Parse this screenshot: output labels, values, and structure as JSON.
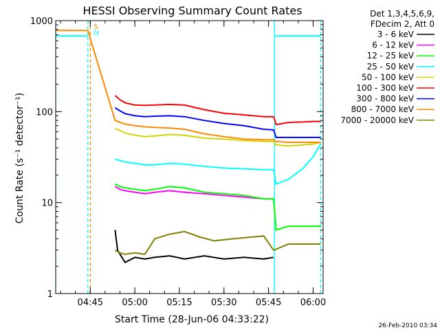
{
  "chart_data": {
    "type": "line",
    "title": "HESSI Observing Summary Count Rates",
    "xlabel": "Start Time (28-Jun-06 04:33:22)",
    "ylabel": "Count Rate (s⁻¹ detector⁻¹)",
    "xlim": [
      0,
      5400
    ],
    "x_units": "seconds since 04:33:22",
    "ylim": [
      1,
      1000
    ],
    "y_scale": "log",
    "x_ticks": [
      {
        "label": "04:45",
        "value": 698
      },
      {
        "label": "05:00",
        "value": 1598
      },
      {
        "label": "05:15",
        "value": 2498
      },
      {
        "label": "05:30",
        "value": 3398
      },
      {
        "label": "05:45",
        "value": 4298
      },
      {
        "label": "06:00",
        "value": 5198
      }
    ],
    "y_ticks": [
      {
        "label": "1",
        "value": 1
      },
      {
        "label": "10",
        "value": 10
      },
      {
        "label": "100",
        "value": 100
      },
      {
        "label": "1000",
        "value": 1000
      }
    ],
    "legend": {
      "title_line1": "Det 1,3,4,5,6,9,",
      "title_line2": "FDecim 2, Att 0",
      "entries": [
        {
          "label": "3 - 6 keV",
          "color": "#000000"
        },
        {
          "label": "6 - 12 keV",
          "color": "#ff00ff"
        },
        {
          "label": "12 - 25 keV",
          "color": "#00ff00"
        },
        {
          "label": "25 - 50 keV",
          "color": "#00ffff"
        },
        {
          "label": "50 - 100 keV",
          "color": "#d4d400"
        },
        {
          "label": "100 - 300 keV",
          "color": "#ff0000"
        },
        {
          "label": "300 - 800 keV",
          "color": "#0000ff"
        },
        {
          "label": "800 - 7000 keV",
          "color": "#ff8800"
        },
        {
          "label": "7000 - 20000 keV",
          "color": "#808000"
        }
      ]
    },
    "flag_markers": [
      {
        "label": "S",
        "color": "#ff8800"
      },
      {
        "label": "N",
        "color": "#00ffff"
      }
    ],
    "series": [
      {
        "name": "3 - 6 keV",
        "color": "#000000",
        "points": [
          [
            1200,
            5
          ],
          [
            1250,
            3
          ],
          [
            1400,
            2.2
          ],
          [
            1600,
            2.5
          ],
          [
            1800,
            2.4
          ],
          [
            2000,
            2.5
          ],
          [
            2300,
            2.6
          ],
          [
            2600,
            2.4
          ],
          [
            3000,
            2.6
          ],
          [
            3400,
            2.4
          ],
          [
            3800,
            2.5
          ],
          [
            4200,
            2.4
          ],
          [
            4400,
            2.5
          ]
        ]
      },
      {
        "name": "6 - 12 keV",
        "color": "#ff00ff",
        "points": [
          [
            1200,
            15
          ],
          [
            1300,
            14
          ],
          [
            1400,
            13.5
          ],
          [
            1600,
            13
          ],
          [
            1800,
            12.5
          ],
          [
            2000,
            13
          ],
          [
            2300,
            13.5
          ],
          [
            2600,
            13
          ],
          [
            3000,
            12.5
          ],
          [
            3400,
            12
          ],
          [
            3800,
            11.5
          ],
          [
            4200,
            11
          ],
          [
            4400,
            11
          ]
        ]
      },
      {
        "name": "12 - 25 keV",
        "color": "#00ff00",
        "points": [
          [
            1200,
            16
          ],
          [
            1300,
            15
          ],
          [
            1400,
            14.5
          ],
          [
            1600,
            14
          ],
          [
            1800,
            13.5
          ],
          [
            2000,
            14
          ],
          [
            2300,
            15
          ],
          [
            2600,
            14.5
          ],
          [
            3000,
            13
          ],
          [
            3400,
            12.5
          ],
          [
            3800,
            12
          ],
          [
            4200,
            11
          ],
          [
            4400,
            11
          ],
          [
            4450,
            5
          ],
          [
            4700,
            5.5
          ],
          [
            5200,
            5.5
          ],
          [
            5350,
            5.5
          ]
        ]
      },
      {
        "name": "25 - 50 keV",
        "color": "#00ffff",
        "points": [
          [
            1200,
            30
          ],
          [
            1300,
            29
          ],
          [
            1400,
            28
          ],
          [
            1600,
            27
          ],
          [
            1800,
            26
          ],
          [
            2000,
            26
          ],
          [
            2300,
            27
          ],
          [
            2600,
            26.5
          ],
          [
            3000,
            25
          ],
          [
            3400,
            24
          ],
          [
            3800,
            23.5
          ],
          [
            4200,
            23
          ],
          [
            4400,
            23
          ],
          [
            4450,
            16
          ],
          [
            4700,
            18
          ],
          [
            5000,
            24
          ],
          [
            5200,
            32
          ],
          [
            5350,
            44
          ]
        ]
      },
      {
        "name": "50 - 100 keV",
        "color": "#d4d400",
        "points": [
          [
            1200,
            65
          ],
          [
            1300,
            62
          ],
          [
            1400,
            58
          ],
          [
            1600,
            55
          ],
          [
            1800,
            53
          ],
          [
            2000,
            54
          ],
          [
            2300,
            56
          ],
          [
            2600,
            55
          ],
          [
            3000,
            51
          ],
          [
            3400,
            50
          ],
          [
            3800,
            48
          ],
          [
            4200,
            47
          ],
          [
            4400,
            47
          ],
          [
            4450,
            43
          ],
          [
            4700,
            42
          ],
          [
            5000,
            43
          ],
          [
            5200,
            44
          ],
          [
            5350,
            46
          ]
        ]
      },
      {
        "name": "100 - 300 keV",
        "color": "#ff0000",
        "points": [
          [
            1200,
            150
          ],
          [
            1300,
            135
          ],
          [
            1400,
            125
          ],
          [
            1600,
            118
          ],
          [
            1800,
            117
          ],
          [
            2000,
            118
          ],
          [
            2300,
            120
          ],
          [
            2600,
            118
          ],
          [
            3000,
            105
          ],
          [
            3400,
            96
          ],
          [
            3800,
            92
          ],
          [
            4200,
            88
          ],
          [
            4400,
            88
          ],
          [
            4450,
            72
          ],
          [
            4700,
            76
          ],
          [
            5000,
            77
          ],
          [
            5200,
            78
          ],
          [
            5350,
            78
          ]
        ]
      },
      {
        "name": "300 - 800 keV",
        "color": "#0000ff",
        "points": [
          [
            1200,
            110
          ],
          [
            1300,
            102
          ],
          [
            1400,
            95
          ],
          [
            1600,
            90
          ],
          [
            1800,
            88
          ],
          [
            2000,
            89
          ],
          [
            2300,
            90
          ],
          [
            2600,
            88
          ],
          [
            3000,
            80
          ],
          [
            3400,
            74
          ],
          [
            3800,
            70
          ],
          [
            4200,
            64
          ],
          [
            4400,
            63
          ],
          [
            4450,
            52
          ],
          [
            4700,
            52
          ],
          [
            5000,
            52
          ],
          [
            5200,
            52
          ],
          [
            5350,
            52
          ]
        ]
      },
      {
        "name": "800 - 7000 keV",
        "color": "#ff8800",
        "points": [
          [
            0,
            780
          ],
          [
            650,
            780
          ],
          [
            1200,
            80
          ],
          [
            1300,
            76
          ],
          [
            1400,
            73
          ],
          [
            1600,
            70
          ],
          [
            1800,
            68
          ],
          [
            2000,
            67
          ],
          [
            2300,
            66
          ],
          [
            2600,
            64
          ],
          [
            3000,
            57
          ],
          [
            3400,
            53
          ],
          [
            3800,
            50
          ],
          [
            4200,
            49
          ],
          [
            4400,
            49
          ],
          [
            4450,
            47
          ],
          [
            4700,
            46
          ],
          [
            5000,
            46
          ],
          [
            5200,
            46
          ],
          [
            5350,
            46
          ]
        ]
      },
      {
        "name": "7000 - 20000 keV",
        "color": "#808000",
        "points": [
          [
            1200,
            3
          ],
          [
            1300,
            2.8
          ],
          [
            1400,
            2.7
          ],
          [
            1600,
            2.8
          ],
          [
            1800,
            2.7
          ],
          [
            2000,
            4
          ],
          [
            2300,
            4.5
          ],
          [
            2600,
            4.8
          ],
          [
            2900,
            4.2
          ],
          [
            3200,
            3.8
          ],
          [
            3600,
            4
          ],
          [
            4000,
            4.2
          ],
          [
            4200,
            4.3
          ],
          [
            4400,
            3
          ],
          [
            4700,
            3.5
          ],
          [
            5000,
            3.5
          ],
          [
            5200,
            3.5
          ],
          [
            5350,
            3.5
          ]
        ]
      },
      {
        "name": "25 - 50 keV",
        "color": "#00ffff",
        "points": [
          [
            0,
            680
          ],
          [
            650,
            680
          ]
        ]
      },
      {
        "name": "25 - 50 keV",
        "color": "#00ffff",
        "points": [
          [
            4420,
            680
          ],
          [
            5350,
            680
          ]
        ]
      }
    ],
    "vertical_markers": [
      {
        "x": 0,
        "color": "#00ffff",
        "dashed": false
      },
      {
        "x": 650,
        "color": "#00ffff",
        "dashed": true
      },
      {
        "x": 700,
        "color": "#ff8800",
        "dashed": true
      },
      {
        "x": 4420,
        "color": "#00ffff",
        "dashed": false
      },
      {
        "x": 5350,
        "color": "#00ffff",
        "dashed": true
      }
    ]
  },
  "footer": {
    "timestamp": "26-Feb-2010 03:34"
  }
}
